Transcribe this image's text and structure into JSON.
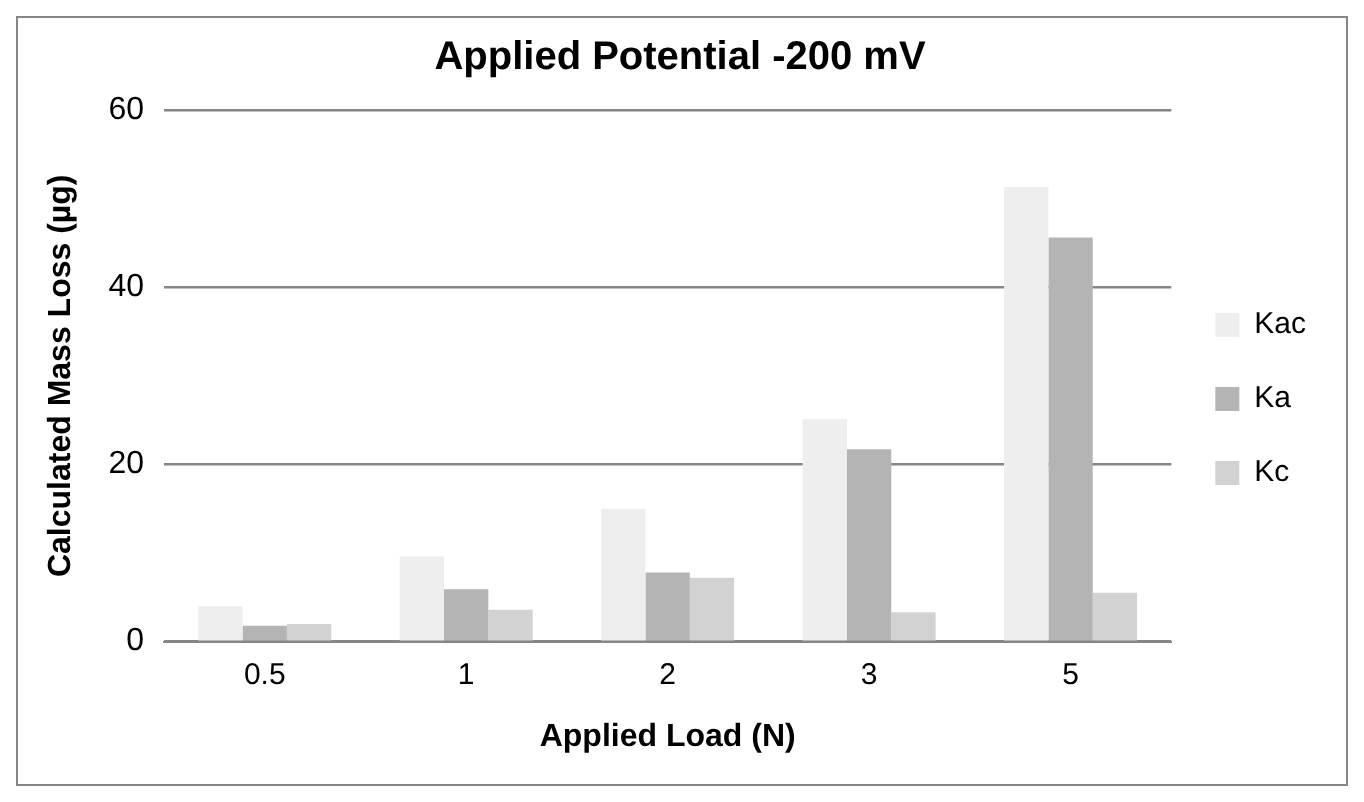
{
  "chart_data": {
    "type": "bar",
    "title": "Applied Potential -200 mV",
    "xlabel": "Applied Load (N)",
    "ylabel": "Calculated Mass Loss (µg)",
    "categories": [
      "0.5",
      "1",
      "2",
      "3",
      "5"
    ],
    "series": [
      {
        "name": "Kac",
        "color": "#eeeeee",
        "values": [
          4.0,
          9.6,
          15.0,
          25.1,
          51.3
        ]
      },
      {
        "name": "Ka",
        "color": "#b4b4b4",
        "values": [
          1.8,
          5.9,
          7.8,
          21.7,
          45.6
        ]
      },
      {
        "name": "Kc",
        "color": "#d2d2d2",
        "values": [
          2.0,
          3.6,
          7.2,
          3.3,
          5.5
        ]
      }
    ],
    "ylim": [
      0,
      60
    ],
    "yticks": [
      0,
      20,
      40,
      60
    ],
    "grid": "y",
    "legend": "right"
  }
}
